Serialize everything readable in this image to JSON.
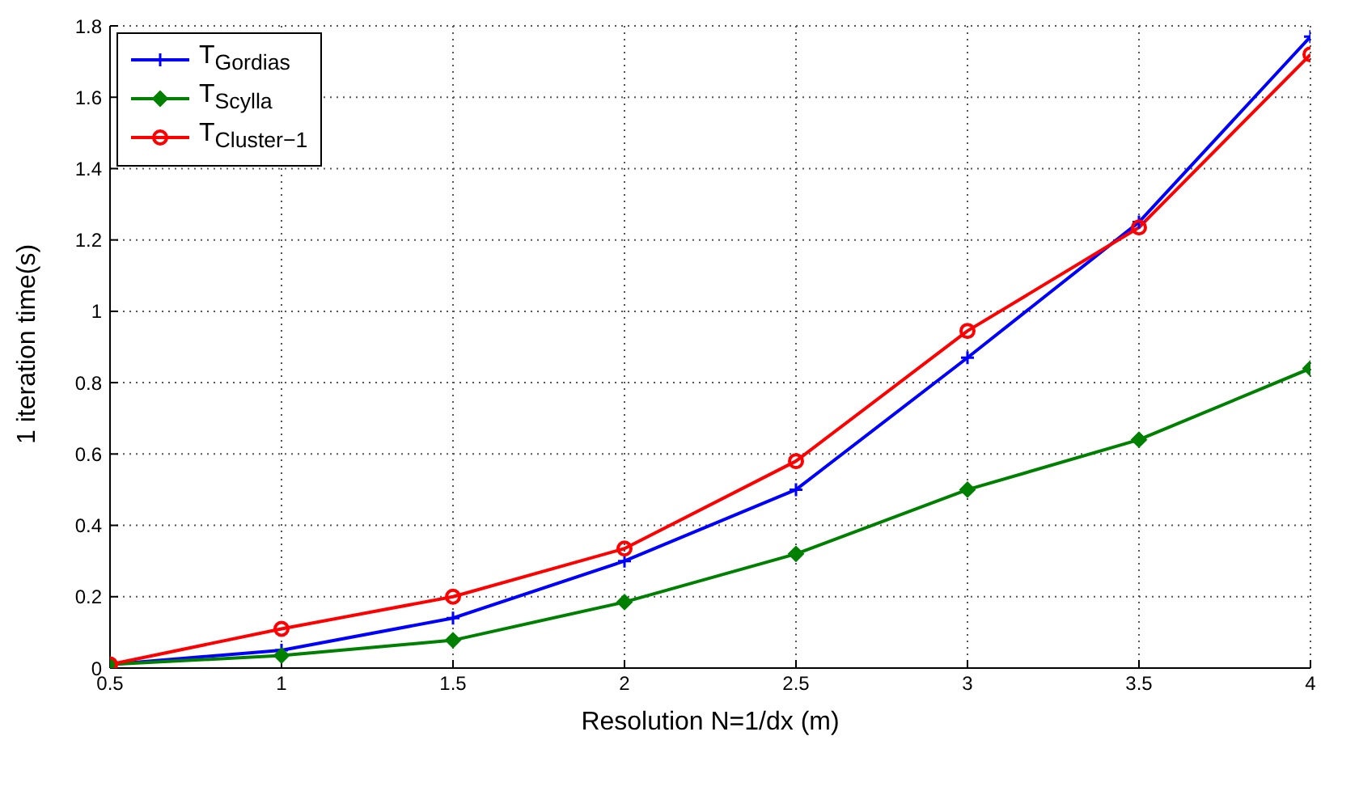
{
  "chart_data": {
    "type": "line",
    "xlabel": "Resolution N=1/dx (m)",
    "ylabel": "1 iteration time(s)",
    "x": [
      0.5,
      1,
      1.5,
      2,
      2.5,
      3,
      3.5,
      4
    ],
    "series": [
      {
        "name": "T$_{Gordias}$",
        "color": "#0000ff",
        "marker": "cross",
        "values": [
          0.01,
          0.05,
          0.14,
          0.3,
          0.5,
          0.87,
          1.25,
          1.77
        ]
      },
      {
        "name": "T$_{Scylla}$",
        "color": "#008000",
        "marker": "diamond",
        "values": [
          0.01,
          0.035,
          0.078,
          0.185,
          0.32,
          0.5,
          0.64,
          0.84
        ]
      },
      {
        "name": "T$_{Cluster−1}$",
        "color": "#ff0000",
        "marker": "circle",
        "values": [
          0.01,
          0.11,
          0.2,
          0.335,
          0.58,
          0.945,
          1.235,
          1.72
        ]
      }
    ],
    "xlim": [
      0.5,
      4
    ],
    "xticks": [
      0.5,
      1,
      1.5,
      2,
      2.5,
      3,
      3.5,
      4
    ],
    "ylim": [
      0,
      1.8
    ],
    "yticks": [
      0,
      0.2,
      0.4,
      0.6,
      0.8,
      1,
      1.2,
      1.4,
      1.6,
      1.8
    ],
    "grid": true,
    "legend": "top left",
    "line_style": "solid"
  }
}
